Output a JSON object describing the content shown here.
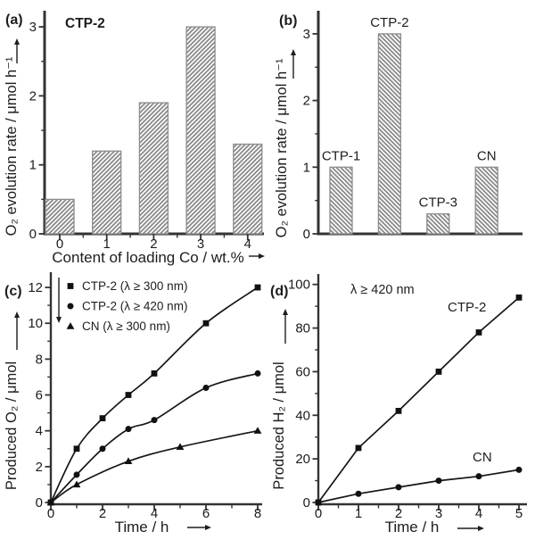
{
  "colors": {
    "background": "#ffffff",
    "ink": "#1d1d1d",
    "axis": "#333333",
    "curve": "#161616",
    "marker": "#111111",
    "hatch_line": "#7e7e7e",
    "bar_fill": "#fbfbfb",
    "bar_border": "#8d8d8d"
  },
  "chart_data": [
    {
      "id": "a",
      "type": "bar",
      "panel_label": "(a)",
      "annotation": "CTP-2",
      "xlabel": "Content of  loading Co / wt.%",
      "ylabel": "O₂ evolution rate / μmol h⁻¹",
      "categories": [
        "0",
        "1",
        "2",
        "3",
        "4"
      ],
      "values": [
        0.5,
        1.2,
        1.9,
        3.0,
        1.3
      ],
      "yticks": [
        0,
        1,
        2,
        3
      ],
      "ylim": [
        0,
        3.3
      ],
      "grid": false,
      "hatch_direction": "forward"
    },
    {
      "id": "b",
      "type": "bar",
      "panel_label": "(b)",
      "annotation": "",
      "xlabel": "",
      "ylabel": "O₂ evolution rate / μmol h⁻¹",
      "categories": [
        "CTP-1",
        "CTP-2",
        "CTP-3",
        "CN"
      ],
      "values": [
        1.0,
        3.0,
        0.3,
        1.0
      ],
      "yticks": [
        0,
        1,
        2,
        3
      ],
      "ylim": [
        0,
        3.3
      ],
      "grid": false,
      "labels_above_bars": true,
      "hatch_direction": "backward"
    },
    {
      "id": "c",
      "type": "line",
      "panel_label": "(c)",
      "annotation": "",
      "xlabel": "Time / h",
      "ylabel": "Produced O₂ / μmol",
      "xticks": [
        0,
        2,
        4,
        6,
        8
      ],
      "yticks": [
        0,
        2,
        4,
        6,
        8,
        10,
        12
      ],
      "xlim": [
        0,
        8.3
      ],
      "ylim": [
        0,
        12.1
      ],
      "grid": false,
      "legend_position": "top-left",
      "series": [
        {
          "name": "CTP-2 (λ ≥ 300 nm)",
          "marker": "square",
          "smooth": true,
          "x": [
            0,
            1,
            2,
            3,
            4,
            6,
            8
          ],
          "y": [
            0,
            3.0,
            4.7,
            6.0,
            7.2,
            10.0,
            12.0
          ]
        },
        {
          "name": "CTP-2 (λ ≥ 420 nm)",
          "marker": "circle",
          "smooth": true,
          "x": [
            0,
            1,
            2,
            3,
            4,
            6,
            8
          ],
          "y": [
            0,
            1.55,
            3.0,
            4.1,
            4.6,
            6.4,
            7.2
          ]
        },
        {
          "name": "CN (λ ≥ 300 nm)",
          "marker": "triangle",
          "smooth": true,
          "x": [
            0,
            1,
            3,
            5,
            8
          ],
          "y": [
            0,
            1.0,
            2.3,
            3.1,
            4.0
          ]
        }
      ]
    },
    {
      "id": "d",
      "type": "line",
      "panel_label": "(d)",
      "annotation": "λ ≥ 420 nm",
      "xlabel": "Time / h",
      "ylabel": "Produced H₂ / μmol",
      "xticks": [
        0,
        1,
        2,
        3,
        4,
        5
      ],
      "yticks": [
        0,
        20,
        40,
        60,
        80,
        100
      ],
      "xlim": [
        0,
        5.2
      ],
      "ylim": [
        0,
        103
      ],
      "grid": false,
      "series": [
        {
          "name": "CTP-2",
          "marker": "square",
          "smooth": false,
          "x": [
            0,
            1,
            2,
            3,
            4,
            5
          ],
          "y": [
            0,
            25,
            42,
            60,
            78,
            94
          ],
          "inline_label": "CTP-2"
        },
        {
          "name": "CN",
          "marker": "circle",
          "smooth": false,
          "x": [
            0,
            1,
            2,
            3,
            4,
            5
          ],
          "y": [
            0,
            4,
            7,
            10,
            12,
            15
          ],
          "inline_label": "CN"
        }
      ]
    }
  ]
}
